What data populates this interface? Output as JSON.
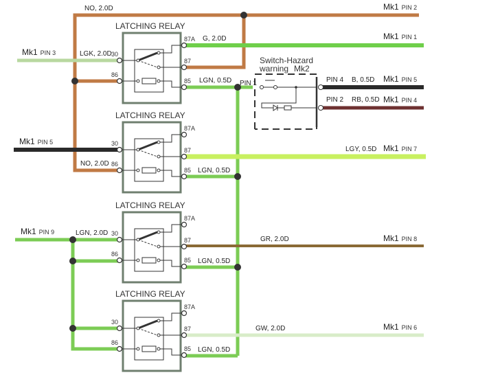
{
  "colors": {
    "brown": "#c07a45",
    "green": "#6fcf4a",
    "light_green": "#b8d8a0",
    "lime": "#c8f060",
    "black": "#2a2a2a",
    "dark_red": "#6e3030",
    "olive_brown": "#8a6a35",
    "pale_green": "#d8ecc8",
    "wire_green": "#7ccc55"
  },
  "relays": [
    {
      "title": "LATCHING RELAY",
      "pins": {
        "p87a": "87A",
        "p87": "87",
        "p30": "30",
        "p86": "86",
        "p85": "85"
      }
    },
    {
      "title": "LATCHING RELAY",
      "pins": {
        "p87a": "87A",
        "p87": "87",
        "p30": "30",
        "p86": "86",
        "p85": "85"
      }
    },
    {
      "title": "LATCHING RELAY",
      "pins": {
        "p87a": "87A",
        "p87": "87",
        "p30": "30",
        "p86": "86",
        "p85": "85"
      }
    },
    {
      "title": "LATCHING RELAY",
      "pins": {
        "p87a": "87A",
        "p87": "87",
        "p30": "30",
        "p86": "86",
        "p85": "85"
      }
    }
  ],
  "wire_labels": {
    "no_top": "NO, 2.0D",
    "g": "G, 2.0D",
    "lgk": "LGK, 2.0D",
    "lgn1": "LGN, 0.5D",
    "pin1": "PIN 1",
    "no2": "NO, 2.0D",
    "lgn2": "LGN, 0.5D",
    "lgy": "LGY, 0.5D",
    "lgn_pin9": "LGN, 2.0D",
    "gr": "GR, 2.0D",
    "lgn3": "LGN, 0.5D",
    "gw": "GW, 2.0D",
    "lgn4": "LGN, 0.5D"
  },
  "connectors": {
    "mk1_pin2": {
      "mk": "Mk1",
      "pin": "PIN 2"
    },
    "mk1_pin1": {
      "mk": "Mk1",
      "pin": "PIN 1"
    },
    "mk1_pin3": {
      "mk": "Mk1",
      "pin": "PIN 3"
    },
    "mk1_pin5_right": {
      "mk": "Mk1",
      "pin": "PIN 5"
    },
    "mk1_pin4": {
      "mk": "Mk1",
      "pin": "PIN 4"
    },
    "mk1_pin5_left": {
      "mk": "Mk1",
      "pin": "PIN 5"
    },
    "mk1_pin7": {
      "mk": "Mk1",
      "pin": "PIN 7"
    },
    "mk1_pin9": {
      "mk": "Mk1",
      "pin": "PIN 9"
    },
    "mk1_pin8": {
      "mk": "Mk1",
      "pin": "PIN 8"
    },
    "mk1_pin6": {
      "mk": "Mk1",
      "pin": "PIN 6"
    }
  },
  "switch": {
    "title_line1": "Switch-Hazard",
    "title_line2": "warning",
    "mk": "Mk2",
    "pin4": "PIN 4",
    "pin4_wire": "B, 0.5D",
    "pin2": "PIN 2",
    "pin2_wire": "RB, 0.5D"
  }
}
